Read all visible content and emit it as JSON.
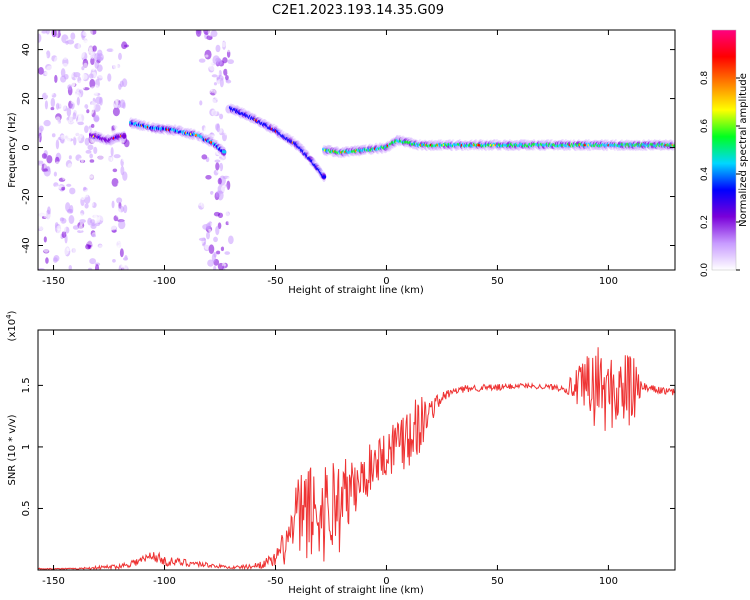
{
  "title": "C2E1.2023.193.14.35.G09",
  "chart_data": [
    {
      "type": "heatmap",
      "xlabel": "Height of straight line (km)",
      "ylabel": "Frequency (Hz)",
      "xlim": [
        -157,
        130
      ],
      "ylim": [
        -50,
        48
      ],
      "xticks": [
        -150,
        -100,
        -50,
        0,
        50,
        100
      ],
      "yticks": [
        -40,
        -20,
        0,
        20,
        40
      ],
      "colorbar": {
        "label": "Normalized spectral amplitude",
        "range": [
          0,
          1
        ],
        "ticks": [
          "0.0",
          "0.2",
          "0.4",
          "0.6",
          "0.8"
        ],
        "colormap": [
          "#ffffff",
          "#c89bff",
          "#7a00d9",
          "#0000ff",
          "#00d7ff",
          "#00ff20",
          "#ffff00",
          "#ff8000",
          "#ff0000",
          "#ff0080"
        ]
      },
      "tracks": [
        {
          "x": [
            -133,
            -125,
            -118
          ],
          "y": [
            5,
            3,
            5
          ],
          "amplitude": 0.3
        },
        {
          "x": [
            -115,
            -105,
            -95,
            -85,
            -78,
            -73
          ],
          "y": [
            10,
            8,
            7,
            5,
            2,
            -2
          ],
          "amplitude": 0.45
        },
        {
          "x": [
            -70,
            -60,
            -50,
            -40,
            -33,
            -28
          ],
          "y": [
            16,
            12,
            7,
            1,
            -6,
            -12
          ],
          "amplitude": 0.4
        },
        {
          "x": [
            -28,
            -20,
            -10,
            0,
            5,
            15,
            40,
            70,
            100,
            130
          ],
          "y": [
            -1,
            -2,
            -1,
            0,
            3,
            1,
            1,
            1,
            1,
            1
          ],
          "amplitude": 0.55
        }
      ],
      "noise_regions": [
        {
          "x": [
            -157,
            -128
          ],
          "y": [
            -50,
            48
          ]
        },
        {
          "x": [
            -125,
            -117
          ],
          "y": [
            -50,
            48
          ]
        },
        {
          "x": [
            -85,
            -70
          ],
          "y": [
            -50,
            48
          ]
        }
      ]
    },
    {
      "type": "line",
      "xlabel": "Height of straight line (km)",
      "ylabel": "SNR (10 * v/v)",
      "scale_label": "(x10",
      "scale_exp": "4",
      "scale_close": ")",
      "xlim": [
        -157,
        130
      ],
      "ylim": [
        0,
        1.95
      ],
      "xticks": [
        -150,
        -100,
        -50,
        0,
        50,
        100
      ],
      "yticks": [
        0.5,
        1.0,
        1.5
      ],
      "color": "#ee3333",
      "series": [
        {
          "x": [
            -157,
            -140,
            -120,
            -110,
            -105,
            -100,
            -90,
            -80,
            -70,
            -60,
            -50,
            -45,
            -40,
            -35,
            -30,
            -25,
            -20,
            -15,
            -10,
            -5,
            0,
            5,
            10,
            15,
            20,
            25,
            30,
            35,
            40,
            50,
            60,
            70,
            80,
            85,
            90,
            95,
            100,
            105,
            110,
            115,
            120,
            130
          ],
          "values": [
            0.01,
            0.01,
            0.03,
            0.08,
            0.12,
            0.07,
            0.06,
            0.04,
            0.02,
            0.03,
            0.08,
            0.22,
            0.42,
            0.48,
            0.45,
            0.52,
            0.55,
            0.65,
            0.75,
            0.9,
            0.95,
            1.05,
            1.15,
            1.18,
            1.3,
            1.4,
            1.45,
            1.47,
            1.48,
            1.48,
            1.5,
            1.49,
            1.48,
            1.49,
            1.45,
            1.5,
            1.42,
            1.47,
            1.45,
            1.48,
            1.47,
            1.44
          ],
          "fluctuation": [
            0.005,
            0.005,
            0.02,
            0.04,
            0.05,
            0.04,
            0.03,
            0.02,
            0.01,
            0.02,
            0.06,
            0.18,
            0.35,
            0.4,
            0.4,
            0.45,
            0.4,
            0.25,
            0.2,
            0.2,
            0.2,
            0.25,
            0.35,
            0.25,
            0.1,
            0.05,
            0.03,
            0.03,
            0.03,
            0.03,
            0.02,
            0.02,
            0.03,
            0.12,
            0.3,
            0.35,
            0.3,
            0.3,
            0.35,
            0.05,
            0.03,
            0.03
          ]
        }
      ]
    }
  ]
}
